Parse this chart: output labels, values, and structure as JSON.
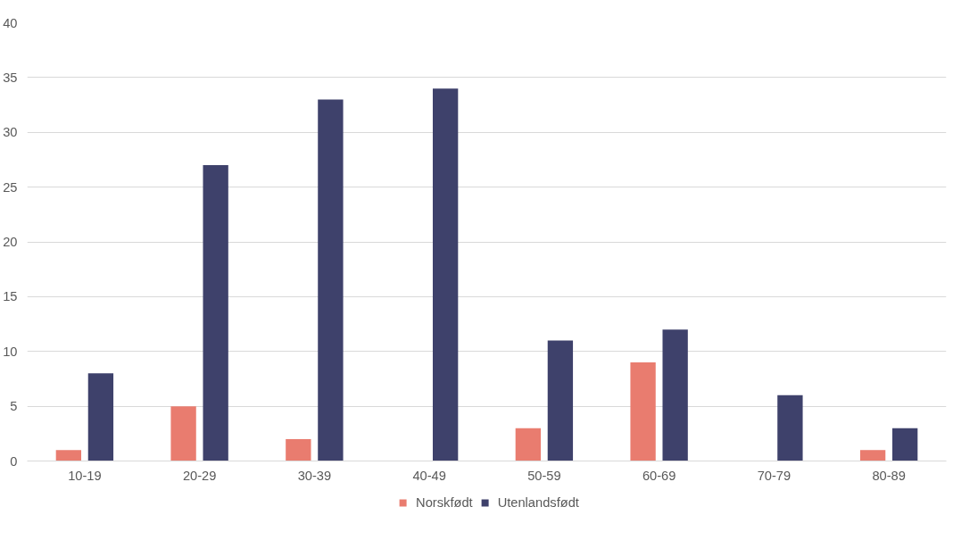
{
  "chart_data": {
    "type": "bar",
    "categories": [
      "10-19",
      "20-29",
      "30-39",
      "40-49",
      "50-59",
      "60-69",
      "70-79",
      "80-89"
    ],
    "series": [
      {
        "name": "Norskfødt",
        "color": "#e97c6f",
        "values": [
          1,
          5,
          2,
          0,
          3,
          9,
          0,
          1
        ]
      },
      {
        "name": "Utenlandsfødt",
        "color": "#3e416b",
        "values": [
          8,
          27,
          33,
          34,
          11,
          12,
          6,
          3
        ]
      }
    ],
    "ylim": [
      0,
      40
    ],
    "yticks": [
      0,
      5,
      10,
      15,
      20,
      25,
      30,
      35,
      40
    ],
    "grid": "y",
    "legend": "bottom"
  }
}
